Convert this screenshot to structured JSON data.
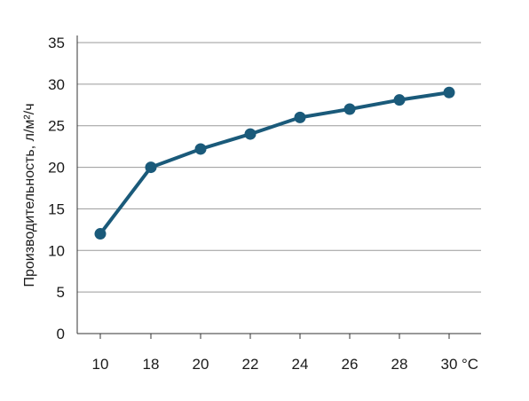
{
  "chart_data": {
    "type": "line",
    "x": [
      10,
      18,
      20,
      22,
      24,
      26,
      28,
      30
    ],
    "series": [
      {
        "values": [
          12,
          20,
          22.2,
          24,
          26,
          27,
          28.1,
          29
        ]
      }
    ],
    "ylabel": "Производительность, л/м²/ч",
    "x_unit": "°C",
    "yticks": [
      0,
      5,
      10,
      15,
      20,
      25,
      30,
      35
    ],
    "ylim": [
      0,
      35
    ],
    "grid": "horizontal",
    "colors": {
      "line": "#1a5a7a",
      "marker": "#1a5a7a",
      "grid": "#9a9a9a",
      "axis": "#333333"
    }
  }
}
